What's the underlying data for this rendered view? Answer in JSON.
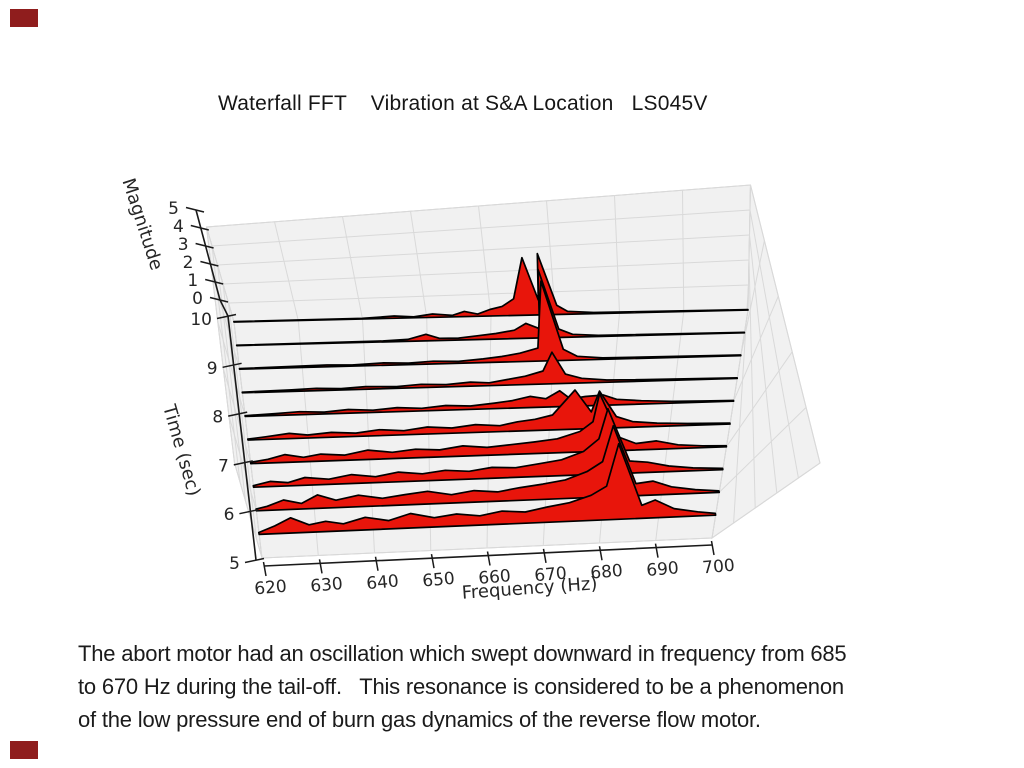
{
  "slide": {
    "title": "Waterfall FFT    Vibration at S&A Location   LS045V",
    "caption_lines": [
      "The abort motor had an oscillation which swept downward in frequency from 685",
      "to 670 Hz during the tail-off.   This resonance is considered to be a phenomenon",
      "of the low pressure end of burn gas dynamics of the reverse flow motor."
    ],
    "accent_color": "#8f1d1d"
  },
  "chart_data": {
    "type": "area",
    "subtype": "3d-waterfall-fft",
    "title": "Waterfall FFT    Vibration at S&A Location   LS045V",
    "xlabel": "Frequency (Hz)",
    "ylabel": "Time (sec)",
    "zlabel": "Magnitude",
    "xlim": [
      620,
      700
    ],
    "ylim": [
      5,
      10
    ],
    "zlim": [
      0,
      5
    ],
    "x_ticks": [
      620,
      630,
      640,
      650,
      660,
      670,
      680,
      690,
      700
    ],
    "y_ticks": [
      5,
      6,
      7,
      8,
      9,
      10
    ],
    "z_ticks": [
      0,
      1,
      2,
      3,
      4,
      5
    ],
    "grid": true,
    "colors": {
      "fill": "#e8150b",
      "edge": "#000000",
      "pane": "#f1f1f1",
      "grid_line": "#d9d9d9",
      "pane_edge": "#cfcfcf",
      "axis": "#1a1a1a",
      "text": "#262626"
    },
    "series": [
      {
        "time": 10,
        "points": [
          [
            620,
            0.02
          ],
          [
            640,
            0.03
          ],
          [
            645,
            0.12
          ],
          [
            648,
            0.05
          ],
          [
            651,
            0.18
          ],
          [
            654,
            0.08
          ],
          [
            656,
            0.28
          ],
          [
            658,
            0.12
          ],
          [
            660,
            0.35
          ],
          [
            662,
            0.5
          ],
          [
            664,
            0.9
          ],
          [
            666.5,
            3.1
          ],
          [
            667.8,
            0.8
          ],
          [
            669,
            3.3
          ],
          [
            670.5,
            0.5
          ],
          [
            672,
            0.15
          ],
          [
            676,
            0.06
          ],
          [
            700,
            0.02
          ]
        ]
      },
      {
        "time": 9.5,
        "points": [
          [
            620,
            0.02
          ],
          [
            643,
            0.05
          ],
          [
            647,
            0.1
          ],
          [
            650,
            0.35
          ],
          [
            652,
            0.12
          ],
          [
            655,
            0.1
          ],
          [
            658,
            0.2
          ],
          [
            661,
            0.3
          ],
          [
            664,
            0.45
          ],
          [
            666,
            0.8
          ],
          [
            668,
            0.5
          ],
          [
            669.5,
            3.7
          ],
          [
            671,
            0.45
          ],
          [
            673,
            0.15
          ],
          [
            677,
            0.06
          ],
          [
            700,
            0.02
          ]
        ]
      },
      {
        "time": 9,
        "points": [
          [
            620,
            0.03
          ],
          [
            634,
            0.1
          ],
          [
            638,
            0.06
          ],
          [
            643,
            0.13
          ],
          [
            647,
            0.08
          ],
          [
            651,
            0.15
          ],
          [
            655,
            0.1
          ],
          [
            659,
            0.2
          ],
          [
            662,
            0.3
          ],
          [
            665,
            0.45
          ],
          [
            668,
            0.7
          ],
          [
            670.5,
            4.3
          ],
          [
            672,
            0.6
          ],
          [
            674,
            0.2
          ],
          [
            678,
            0.08
          ],
          [
            700,
            0.03
          ]
        ]
      },
      {
        "time": 8.5,
        "points": [
          [
            620,
            0.03
          ],
          [
            628,
            0.08
          ],
          [
            632,
            0.12
          ],
          [
            636,
            0.07
          ],
          [
            640,
            0.14
          ],
          [
            645,
            0.09
          ],
          [
            649,
            0.18
          ],
          [
            653,
            0.12
          ],
          [
            657,
            0.22
          ],
          [
            660,
            0.15
          ],
          [
            663,
            0.3
          ],
          [
            666,
            0.45
          ],
          [
            669,
            0.7
          ],
          [
            671,
            1.7
          ],
          [
            672.5,
            0.5
          ],
          [
            675,
            0.25
          ],
          [
            679,
            0.12
          ],
          [
            685,
            0.08
          ],
          [
            700,
            0.03
          ]
        ]
      },
      {
        "time": 8,
        "points": [
          [
            620,
            0.04
          ],
          [
            625,
            0.1
          ],
          [
            629,
            0.16
          ],
          [
            633,
            0.1
          ],
          [
            637,
            0.2
          ],
          [
            641,
            0.12
          ],
          [
            645,
            0.22
          ],
          [
            649,
            0.14
          ],
          [
            653,
            0.25
          ],
          [
            657,
            0.18
          ],
          [
            661,
            0.3
          ],
          [
            664,
            0.4
          ],
          [
            667,
            0.6
          ],
          [
            669.5,
            0.45
          ],
          [
            672,
            0.85
          ],
          [
            673.5,
            0.4
          ],
          [
            676,
            0.5
          ],
          [
            679,
            0.55
          ],
          [
            681,
            0.3
          ],
          [
            685,
            0.18
          ],
          [
            690,
            0.1
          ],
          [
            695,
            0.06
          ],
          [
            700,
            0.04
          ]
        ]
      },
      {
        "time": 7.5,
        "points": [
          [
            620,
            0.05
          ],
          [
            623,
            0.14
          ],
          [
            627,
            0.28
          ],
          [
            630,
            0.16
          ],
          [
            634,
            0.26
          ],
          [
            638,
            0.18
          ],
          [
            642,
            0.32
          ],
          [
            646,
            0.22
          ],
          [
            650,
            0.38
          ],
          [
            654,
            0.28
          ],
          [
            658,
            0.42
          ],
          [
            662,
            0.32
          ],
          [
            665,
            0.5
          ],
          [
            668,
            0.6
          ],
          [
            671,
            0.8
          ],
          [
            675.5,
            2.1
          ],
          [
            677.5,
            0.9
          ],
          [
            679.5,
            2.0
          ],
          [
            681.5,
            0.6
          ],
          [
            684,
            0.3
          ],
          [
            688,
            0.18
          ],
          [
            693,
            0.1
          ],
          [
            700,
            0.05
          ]
        ]
      },
      {
        "time": 7,
        "points": [
          [
            620,
            0.07
          ],
          [
            623,
            0.2
          ],
          [
            626,
            0.42
          ],
          [
            629,
            0.24
          ],
          [
            632,
            0.38
          ],
          [
            636,
            0.28
          ],
          [
            640,
            0.5
          ],
          [
            644,
            0.34
          ],
          [
            648,
            0.46
          ],
          [
            652,
            0.38
          ],
          [
            656,
            0.55
          ],
          [
            660,
            0.42
          ],
          [
            664,
            0.52
          ],
          [
            668,
            0.62
          ],
          [
            672,
            0.75
          ],
          [
            676,
            1.1
          ],
          [
            678.5,
            1.6
          ],
          [
            680.5,
            3.1
          ],
          [
            682.5,
            0.7
          ],
          [
            685,
            0.35
          ],
          [
            688.5,
            0.45
          ],
          [
            692,
            0.2
          ],
          [
            696,
            0.1
          ],
          [
            700,
            0.06
          ]
        ]
      },
      {
        "time": 6.5,
        "points": [
          [
            620,
            0.08
          ],
          [
            623,
            0.28
          ],
          [
            626,
            0.18
          ],
          [
            629,
            0.42
          ],
          [
            633,
            0.28
          ],
          [
            637,
            0.48
          ],
          [
            641,
            0.32
          ],
          [
            645,
            0.52
          ],
          [
            649,
            0.38
          ],
          [
            653,
            0.52
          ],
          [
            657,
            0.42
          ],
          [
            661,
            0.58
          ],
          [
            665,
            0.52
          ],
          [
            669,
            0.68
          ],
          [
            673,
            0.85
          ],
          [
            677,
            1.25
          ],
          [
            680,
            1.9
          ],
          [
            682.5,
            3.5
          ],
          [
            684.5,
            0.65
          ],
          [
            687.5,
            0.55
          ],
          [
            691,
            0.3
          ],
          [
            695,
            0.15
          ],
          [
            700,
            0.07
          ]
        ]
      },
      {
        "time": 6,
        "points": [
          [
            620,
            0.09
          ],
          [
            622,
            0.22
          ],
          [
            625,
            0.52
          ],
          [
            628,
            0.3
          ],
          [
            631,
            0.72
          ],
          [
            634,
            0.4
          ],
          [
            638,
            0.62
          ],
          [
            642,
            0.4
          ],
          [
            646,
            0.55
          ],
          [
            650,
            0.68
          ],
          [
            654,
            0.45
          ],
          [
            658,
            0.62
          ],
          [
            662,
            0.5
          ],
          [
            666,
            0.68
          ],
          [
            670,
            0.82
          ],
          [
            674,
            1.0
          ],
          [
            678,
            1.4
          ],
          [
            681,
            1.9
          ],
          [
            684,
            3.8
          ],
          [
            686,
            0.65
          ],
          [
            689,
            0.75
          ],
          [
            692,
            0.4
          ],
          [
            696,
            0.2
          ],
          [
            700,
            0.08
          ]
        ]
      },
      {
        "time": 5.5,
        "points": [
          [
            620,
            0.1
          ],
          [
            623,
            0.42
          ],
          [
            626,
            0.82
          ],
          [
            629,
            0.4
          ],
          [
            632,
            0.55
          ],
          [
            635,
            0.38
          ],
          [
            639,
            0.68
          ],
          [
            643,
            0.45
          ],
          [
            647,
            0.78
          ],
          [
            651,
            0.5
          ],
          [
            655,
            0.65
          ],
          [
            659,
            0.5
          ],
          [
            663,
            0.7
          ],
          [
            667,
            0.6
          ],
          [
            671,
            0.82
          ],
          [
            675,
            1.0
          ],
          [
            679,
            1.35
          ],
          [
            682,
            1.8
          ],
          [
            685.5,
            4.05
          ],
          [
            687.5,
            0.7
          ],
          [
            690,
            0.95
          ],
          [
            693,
            0.45
          ],
          [
            697,
            0.22
          ],
          [
            700,
            0.1
          ]
        ]
      }
    ]
  }
}
